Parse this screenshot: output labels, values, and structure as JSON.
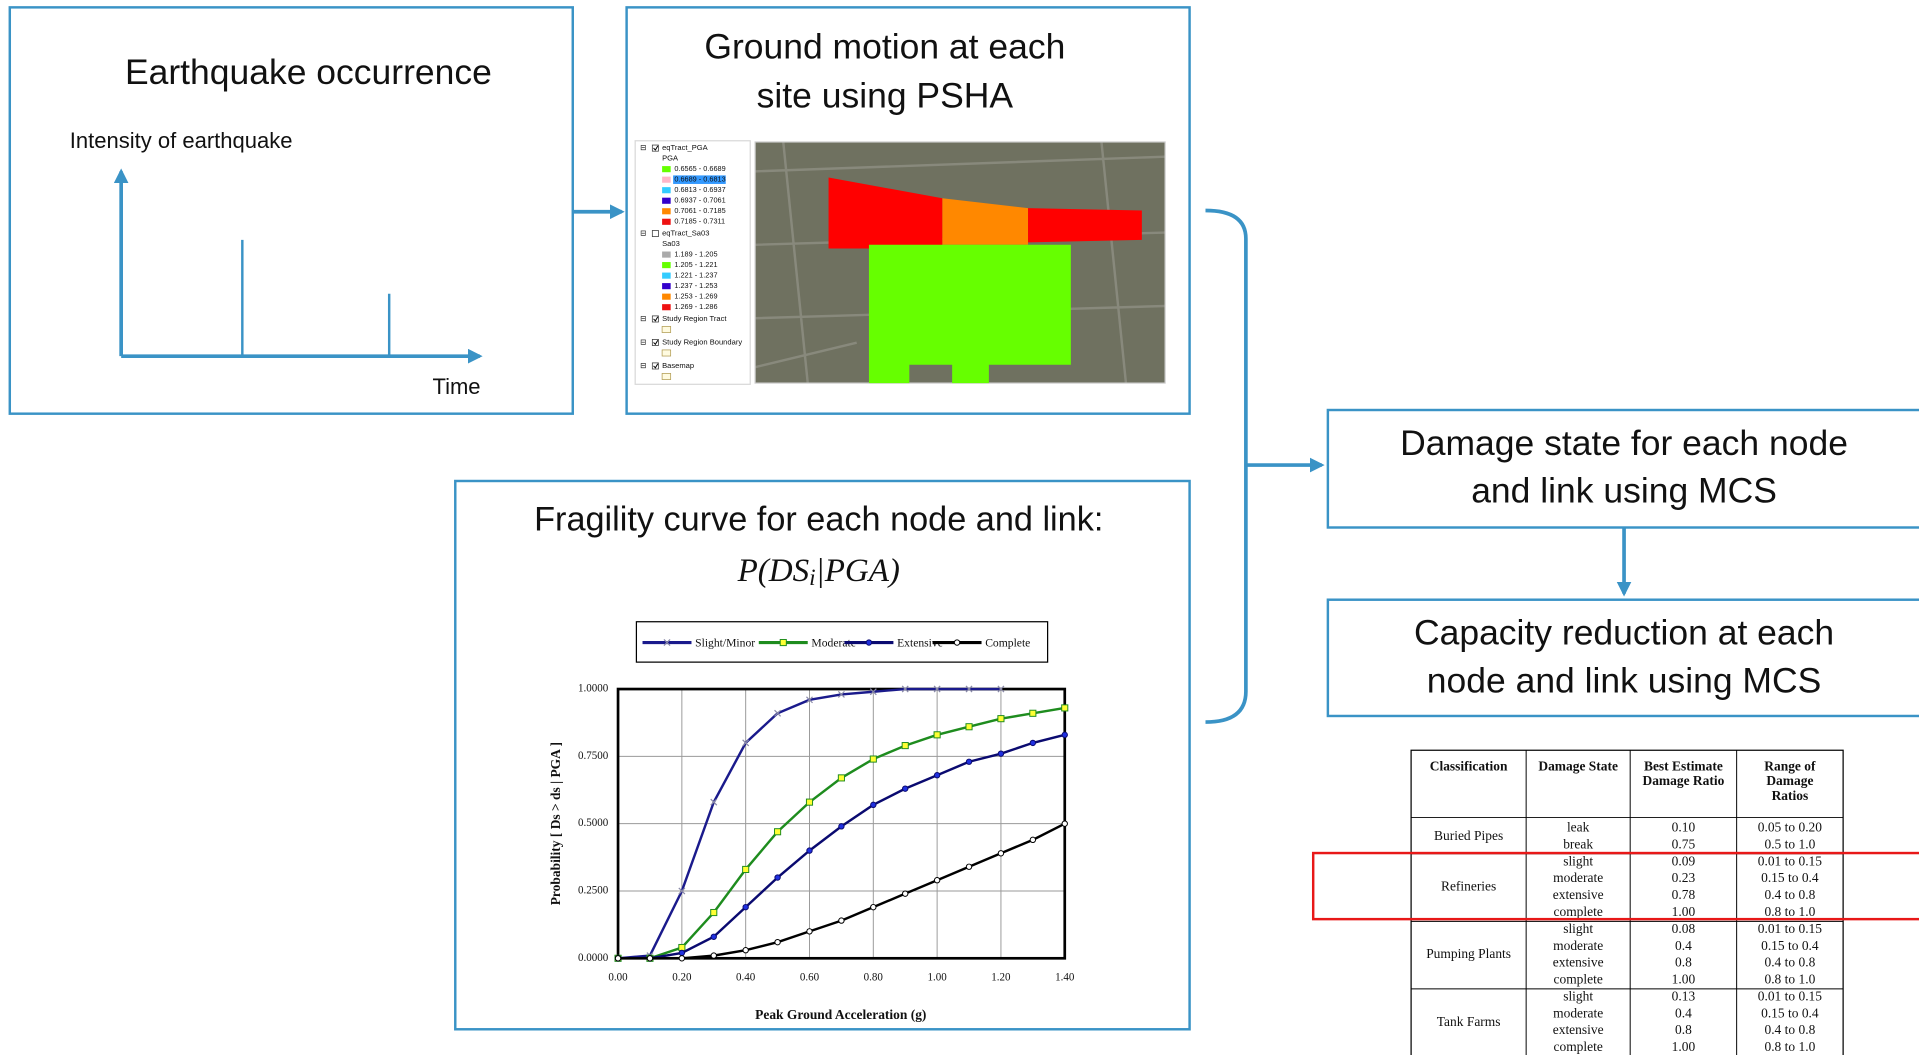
{
  "earthquake": {
    "title": "Earthquake occurrence",
    "y_label": "Intensity of  earthquake",
    "x_label": "Time"
  },
  "ground_motion": {
    "title_lines": [
      "Ground motion at each",
      "site using PSHA"
    ],
    "map_legend": [
      {
        "layer": "eqTract_PGA",
        "checked": true,
        "field": "PGA",
        "classes": [
          {
            "label": "0.6565 - 0.6689",
            "color": "#66ff00"
          },
          {
            "label": "0.6689 - 0.6813",
            "color": "#ffb6c8",
            "selected": true
          },
          {
            "label": "0.6813 - 0.6937",
            "color": "#33ccff"
          },
          {
            "label": "0.6937 - 0.7061",
            "color": "#3300cc"
          },
          {
            "label": "0.7061 - 0.7185",
            "color": "#ff8800"
          },
          {
            "label": "0.7185 - 0.7311",
            "color": "#ee1111"
          }
        ]
      },
      {
        "layer": "eqTract_Sa03",
        "checked": false,
        "field": "Sa03",
        "classes": [
          {
            "label": "1.189 - 1.205",
            "color": "#aaaaaa"
          },
          {
            "label": "1.205 - 1.221",
            "color": "#66ff00"
          },
          {
            "label": "1.221 - 1.237",
            "color": "#33ccff"
          },
          {
            "label": "1.237 - 1.253",
            "color": "#3300cc"
          },
          {
            "label": "1.253 - 1.269",
            "color": "#ff8800"
          },
          {
            "label": "1.269 - 1.286",
            "color": "#ee1111"
          }
        ]
      },
      {
        "layer": "Study Region Tract",
        "checked": true
      },
      {
        "layer": "Study Region Boundary",
        "checked": true
      },
      {
        "layer": "Basemap",
        "checked": true
      }
    ]
  },
  "fragility": {
    "title": "Fragility curve for each node and link:",
    "formula_pre": "P(DS",
    "formula_sub": "i",
    "formula_post": "|PGA)"
  },
  "chart_data": {
    "type": "line",
    "x_label": "Peak Ground Acceleration (g)",
    "y_label": "Probability [ Ds > ds | PGA ]",
    "x": [
      0,
      0.1,
      0.2,
      0.3,
      0.4,
      0.5,
      0.6,
      0.7,
      0.8,
      0.9,
      1.0,
      1.1,
      1.2,
      1.3,
      1.4
    ],
    "series": [
      {
        "name": "Slight/Minor",
        "color": "#1a1a8c",
        "marker": "x",
        "marker_color": "#8a8aa8",
        "values": [
          0,
          0.01,
          0.25,
          0.58,
          0.8,
          0.91,
          0.96,
          0.98,
          0.99,
          1.0,
          1.0,
          1.0,
          1.0,
          null,
          null
        ]
      },
      {
        "name": "Moderate",
        "color": "#1e8c1e",
        "marker": "square",
        "marker_color": "#ffff33",
        "values": [
          0,
          0,
          0.04,
          0.17,
          0.33,
          0.47,
          0.58,
          0.67,
          0.74,
          0.79,
          0.83,
          0.86,
          0.89,
          0.91,
          0.93
        ]
      },
      {
        "name": "Extensive",
        "color": "#0a0a70",
        "marker": "circle",
        "marker_color": "#2030e0",
        "values": [
          0,
          0,
          0.02,
          0.08,
          0.19,
          0.3,
          0.4,
          0.49,
          0.57,
          0.63,
          0.68,
          0.73,
          0.76,
          0.8,
          0.83
        ]
      },
      {
        "name": "Complete",
        "color": "#000000",
        "marker": "circle",
        "marker_color": "#ffffff",
        "values": [
          0,
          0,
          0,
          0.01,
          0.03,
          0.06,
          0.1,
          0.14,
          0.19,
          0.24,
          0.29,
          0.34,
          0.39,
          0.44,
          0.5
        ]
      }
    ],
    "xlim": [
      0,
      1.4
    ],
    "ylim": [
      0,
      1
    ],
    "xticks": [
      {
        "value": 0,
        "label": "0.00"
      },
      {
        "value": 0.2,
        "label": "0.20"
      },
      {
        "value": 0.4,
        "label": "0.40"
      },
      {
        "value": 0.6,
        "label": "0.60"
      },
      {
        "value": 0.8,
        "label": "0.80"
      },
      {
        "value": 1.0,
        "label": "1.00"
      },
      {
        "value": 1.2,
        "label": "1.20"
      },
      {
        "value": 1.4,
        "label": "1.40"
      }
    ],
    "yticks": [
      {
        "value": 0,
        "label": "0.0000"
      },
      {
        "value": 0.25,
        "label": "0.2500"
      },
      {
        "value": 0.5,
        "label": "0.5000"
      },
      {
        "value": 0.75,
        "label": "0.7500"
      },
      {
        "value": 1,
        "label": "1.0000"
      }
    ],
    "grid": true
  },
  "damage": {
    "title_lines": [
      "Damage state for each node",
      "and link using MCS"
    ]
  },
  "capacity": {
    "title_lines": [
      "Capacity reduction at each",
      "node and link using MCS"
    ]
  },
  "table": {
    "header": [
      [
        "Classification"
      ],
      [
        "Damage State"
      ],
      [
        "Best Estimate",
        "Damage Ratio"
      ],
      [
        "Range of",
        "Damage",
        "Ratios"
      ]
    ],
    "groups": [
      {
        "classification": "Buried Pipes",
        "rows": [
          [
            "leak",
            "0.10",
            "0.05 to 0.20"
          ],
          [
            "break",
            "0.75",
            "0.5 to 1.0"
          ]
        ]
      },
      {
        "classification": "Refineries",
        "rows": [
          [
            "slight",
            "0.09",
            "0.01 to 0.15"
          ],
          [
            "moderate",
            "0.23",
            "0.15 to 0.4"
          ],
          [
            "extensive",
            "0.78",
            "0.4 to 0.8"
          ],
          [
            "complete",
            "1.00",
            "0.8 to 1.0"
          ]
        ]
      },
      {
        "classification": "Pumping Plants",
        "rows": [
          [
            "slight",
            "0.08",
            "0.01 to 0.15"
          ],
          [
            "moderate",
            "0.4",
            "0.15 to 0.4"
          ],
          [
            "extensive",
            "0.8",
            "0.4 to 0.8"
          ],
          [
            "complete",
            "1.00",
            "0.8 to 1.0"
          ]
        ]
      },
      {
        "classification": "Tank Farms",
        "rows": [
          [
            "slight",
            "0.13",
            "0.01 to 0.15"
          ],
          [
            "moderate",
            "0.4",
            "0.15 to 0.4"
          ],
          [
            "extensive",
            "0.8",
            "0.4 to 0.8"
          ],
          [
            "complete",
            "1.00",
            "0.8 to 1.0"
          ]
        ]
      }
    ]
  }
}
